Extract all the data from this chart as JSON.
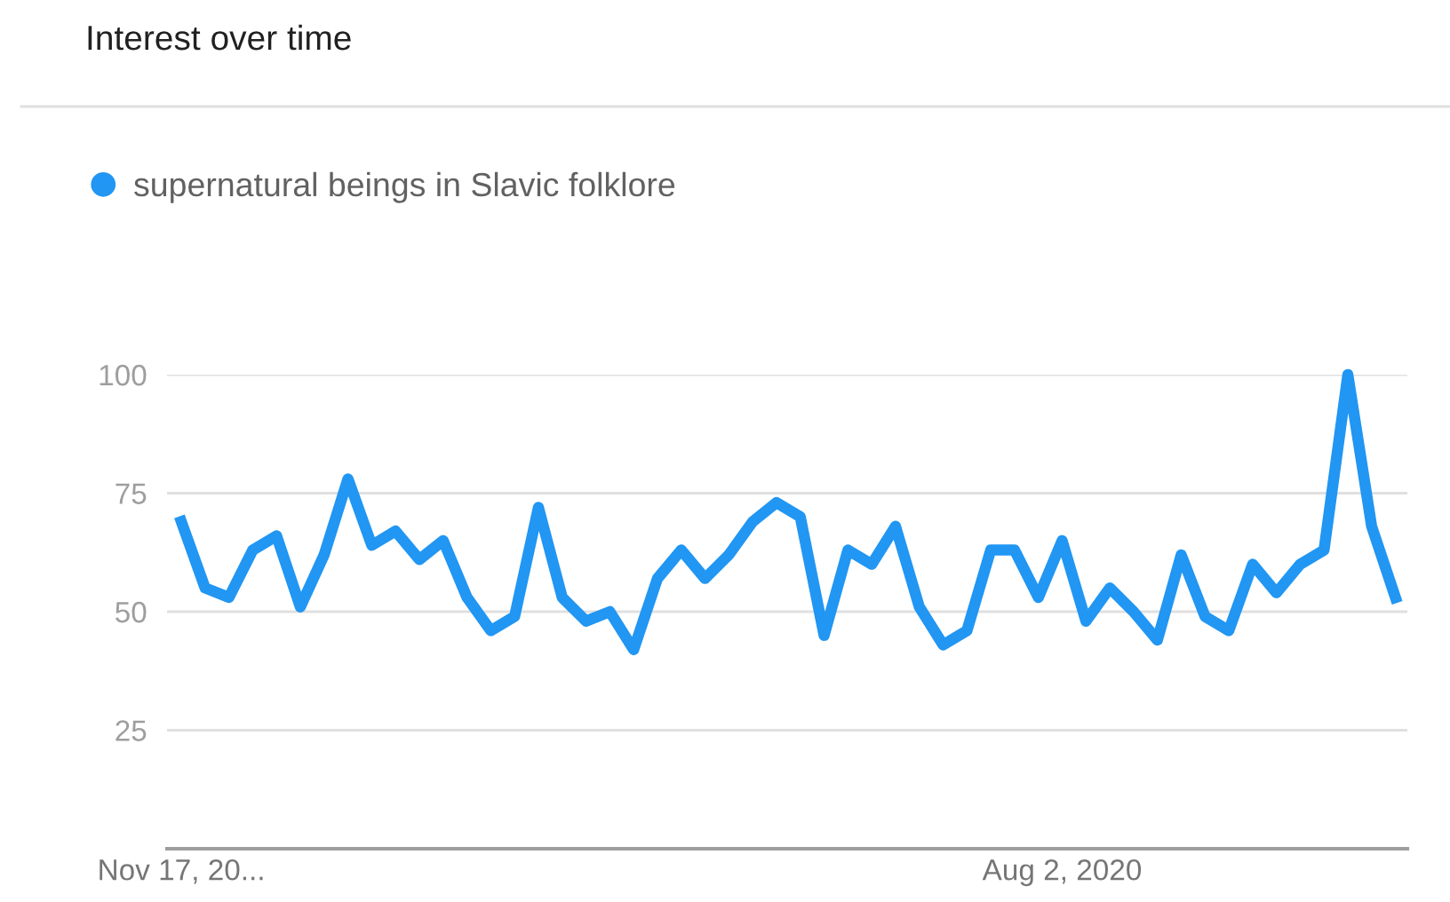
{
  "chart_data": {
    "type": "line",
    "title": "Interest over time",
    "categories": [
      "Nov 17, 20...",
      null,
      null,
      null,
      null,
      null,
      null,
      null,
      null,
      null,
      null,
      null,
      null,
      null,
      null,
      null,
      null,
      null,
      null,
      null,
      null,
      null,
      null,
      null,
      null,
      null,
      null,
      null,
      null,
      null,
      null,
      null,
      null,
      null,
      null,
      null,
      null,
      "Aug 2, 2020",
      null,
      null,
      null,
      null,
      null,
      null,
      null,
      null,
      null,
      null,
      null,
      null,
      null,
      null
    ],
    "series": [
      {
        "name": "supernatural beings in Slavic folklore",
        "color": "#2196f3",
        "values": [
          69,
          55,
          53,
          63,
          66,
          51,
          62,
          78,
          64,
          67,
          61,
          65,
          53,
          46,
          49,
          72,
          53,
          48,
          50,
          42,
          57,
          63,
          57,
          62,
          69,
          73,
          70,
          45,
          63,
          60,
          68,
          51,
          43,
          46,
          63,
          63,
          53,
          65,
          48,
          55,
          50,
          44,
          62,
          49,
          46,
          60,
          54,
          60,
          63,
          100,
          68,
          53
        ]
      }
    ],
    "ylim": [
      0,
      100
    ],
    "yticks": [
      25,
      50,
      75,
      100
    ],
    "grid": "y",
    "legend": "top left",
    "marker": "none",
    "line_style": "solid"
  }
}
